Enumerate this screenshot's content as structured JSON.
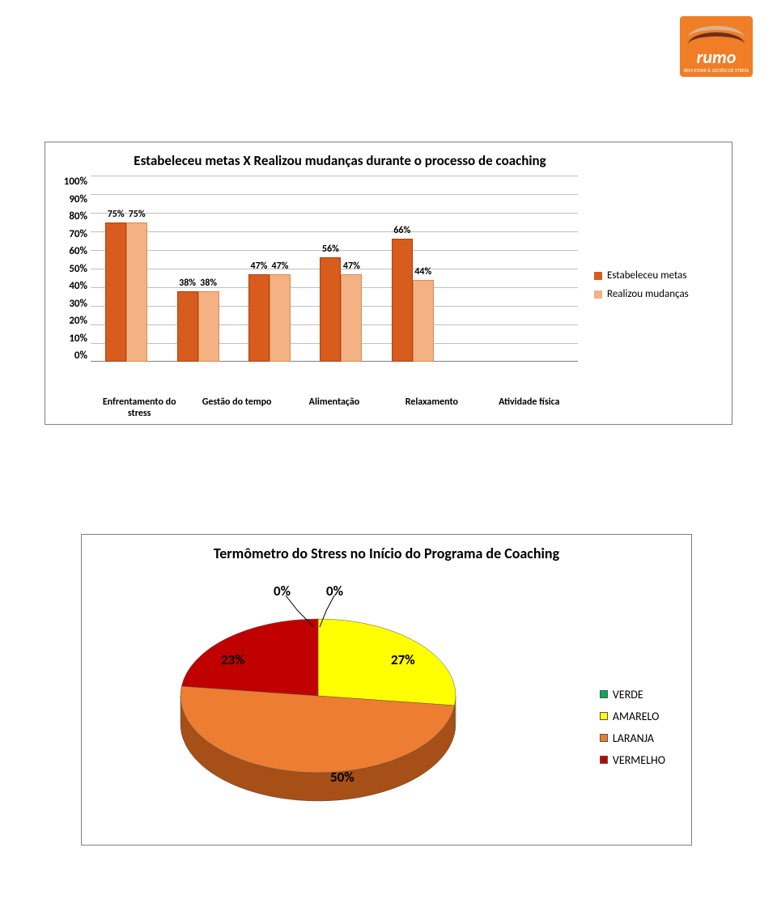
{
  "logo": {
    "brand": "rumo",
    "tagline": "BEM-ESTAR &\nGESTÃO DE STRESS",
    "bg_color": "#f07e26"
  },
  "bar_chart": {
    "type": "bar",
    "title": "Estabeleceu metas X Realizou mudanças durante o processo de coaching",
    "categories": [
      "Enfrentamento do stress",
      "Gestão do tempo",
      "Alimentação",
      "Relaxamento",
      "Atividade física"
    ],
    "series": [
      {
        "name": "Estabeleceu metas",
        "color": "#d85c1e",
        "values": [
          75,
          38,
          47,
          56,
          66
        ]
      },
      {
        "name": "Realizou mudanças",
        "color": "#f4b183",
        "values": [
          75,
          38,
          47,
          47,
          44
        ]
      }
    ],
    "y_ticks": [
      "100%",
      "90%",
      "80%",
      "70%",
      "60%",
      "50%",
      "40%",
      "30%",
      "20%",
      "10%",
      "0%"
    ],
    "ylim": [
      0,
      100
    ],
    "ytick_step": 10,
    "bar_labels": [
      [
        "75%",
        "75%"
      ],
      [
        "38%",
        "38%"
      ],
      [
        "47%",
        "47%"
      ],
      [
        "56%",
        "47%"
      ],
      [
        "66%",
        "44%"
      ]
    ],
    "grid_color": "#bfbfbf",
    "background_color": "#ffffff",
    "title_fontsize": 17,
    "label_fontsize": 13,
    "border_color": "#7f7f7f"
  },
  "pie_chart": {
    "type": "pie",
    "title": "Termômetro do Stress no Início do Programa de Coaching",
    "slices": [
      {
        "name": "VERDE",
        "value": 0,
        "label": "0%",
        "color": "#00b050"
      },
      {
        "name": "AMARELO",
        "value": 27,
        "label": "27%",
        "color": "#ffff00"
      },
      {
        "name": "LARANJA",
        "value": 50,
        "label": "50%",
        "color": "#ed7d31"
      },
      {
        "name": "VERMELHO",
        "value": 23,
        "label": "23%",
        "color": "#c00000"
      }
    ],
    "extra_zero_label": "0%",
    "legend_labels": [
      "VERDE",
      "AMARELO",
      "LARANJA",
      "VERMELHO"
    ],
    "legend_colors": [
      "#00b050",
      "#ffff00",
      "#ed7d31",
      "#c00000"
    ],
    "side_colors": {
      "amarelo": "#8f8f00",
      "laranja": "#a64f17",
      "vermelho": "#6b0000"
    },
    "background_color": "#ffffff",
    "title_fontsize": 18,
    "border_color": "#7f7f7f"
  }
}
